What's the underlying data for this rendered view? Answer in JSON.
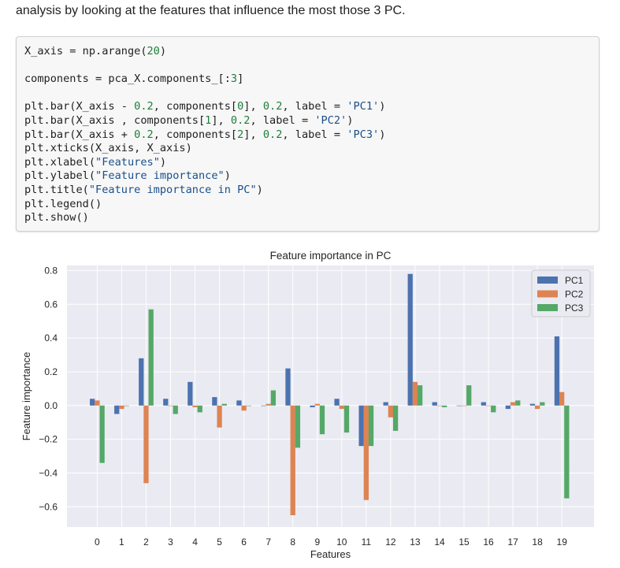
{
  "intro_text": "analysis by looking at the features that influence the most those 3 PC.",
  "code_lines": [
    [
      {
        "t": "X_axis = np.arange("
      },
      {
        "t": "20",
        "c": "num"
      },
      {
        "t": ")"
      }
    ],
    [],
    [
      {
        "t": "components = pca_X.components_[:"
      },
      {
        "t": "3",
        "c": "num"
      },
      {
        "t": "]"
      }
    ],
    [],
    [
      {
        "t": "plt.bar(X_axis - "
      },
      {
        "t": "0.2",
        "c": "num"
      },
      {
        "t": ", components["
      },
      {
        "t": "0",
        "c": "num"
      },
      {
        "t": "], "
      },
      {
        "t": "0.2",
        "c": "num"
      },
      {
        "t": ", label = "
      },
      {
        "t": "'PC1'",
        "c": "str"
      },
      {
        "t": ")"
      }
    ],
    [
      {
        "t": "plt.bar(X_axis , components["
      },
      {
        "t": "1",
        "c": "num"
      },
      {
        "t": "], "
      },
      {
        "t": "0.2",
        "c": "num"
      },
      {
        "t": ", label = "
      },
      {
        "t": "'PC2'",
        "c": "str"
      },
      {
        "t": ")"
      }
    ],
    [
      {
        "t": "plt.bar(X_axis + "
      },
      {
        "t": "0.2",
        "c": "num"
      },
      {
        "t": ", components["
      },
      {
        "t": "2",
        "c": "num"
      },
      {
        "t": "], "
      },
      {
        "t": "0.2",
        "c": "num"
      },
      {
        "t": ", label = "
      },
      {
        "t": "'PC3'",
        "c": "str"
      },
      {
        "t": ")"
      }
    ],
    [
      {
        "t": "plt.xticks(X_axis, X_axis)"
      }
    ],
    [
      {
        "t": "plt.xlabel("
      },
      {
        "t": "\"Features\"",
        "c": "str"
      },
      {
        "t": ")"
      }
    ],
    [
      {
        "t": "plt.ylabel("
      },
      {
        "t": "\"Feature importance\"",
        "c": "str"
      },
      {
        "t": ")"
      }
    ],
    [
      {
        "t": "plt.title("
      },
      {
        "t": "\"Feature importance in PC\"",
        "c": "str"
      },
      {
        "t": ")"
      }
    ],
    [
      {
        "t": "plt.legend()"
      }
    ],
    [
      {
        "t": "plt.show()"
      }
    ]
  ],
  "chart_data": {
    "type": "bar",
    "title": "Feature importance in PC",
    "xlabel": "Features",
    "ylabel": "Feature importance",
    "categories": [
      "0",
      "1",
      "2",
      "3",
      "4",
      "5",
      "6",
      "7",
      "8",
      "9",
      "10",
      "11",
      "12",
      "13",
      "14",
      "15",
      "16",
      "17",
      "18",
      "19"
    ],
    "series": [
      {
        "name": "PC1",
        "color": "#4c72b0",
        "values": [
          0.04,
          -0.05,
          0.28,
          0.04,
          0.14,
          0.05,
          0.03,
          0.0,
          0.22,
          -0.01,
          0.04,
          -0.24,
          0.02,
          0.78,
          0.02,
          0.0,
          0.02,
          -0.02,
          0.01,
          0.41
        ]
      },
      {
        "name": "PC2",
        "color": "#dd8452",
        "values": [
          0.03,
          -0.02,
          -0.46,
          0.0,
          -0.01,
          -0.13,
          -0.03,
          0.01,
          -0.65,
          0.01,
          -0.02,
          -0.56,
          -0.07,
          0.14,
          0.0,
          0.0,
          0.0,
          0.02,
          -0.02,
          0.08
        ]
      },
      {
        "name": "PC3",
        "color": "#55a868",
        "values": [
          -0.34,
          0.0,
          0.57,
          -0.05,
          -0.04,
          0.01,
          0.0,
          0.09,
          -0.25,
          -0.17,
          -0.16,
          -0.24,
          -0.15,
          0.12,
          -0.01,
          0.12,
          -0.04,
          0.03,
          0.02,
          -0.55
        ]
      }
    ],
    "ylim": [
      -0.72,
      0.83
    ],
    "yticks": [
      -0.6,
      -0.4,
      -0.2,
      0.0,
      0.2,
      0.4,
      0.6,
      0.8
    ],
    "ytick_labels": [
      "−0.6",
      "−0.4",
      "−0.2",
      "0.0",
      "0.2",
      "0.4",
      "0.6",
      "0.8"
    ],
    "grid": true,
    "legend_position": "top-right",
    "background_color": "#eaeaf2"
  }
}
